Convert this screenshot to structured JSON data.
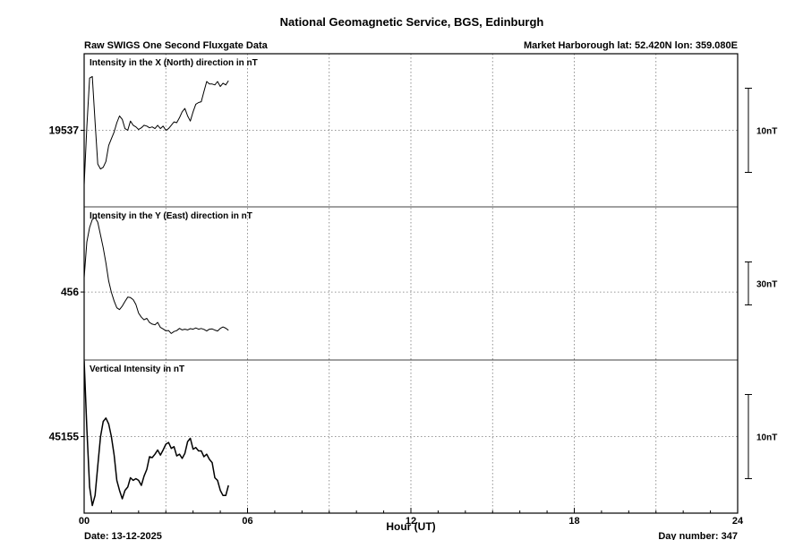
{
  "header": {
    "title": "National Geomagnetic Service, BGS, Edinburgh",
    "subtitle_left": "Raw SWIGS One Second Fluxgate Data",
    "subtitle_right": "Market Harborough  lat: 52.420N lon: 359.080E"
  },
  "footer": {
    "date": "Date: 13-12-2025",
    "day_number": "Day number:  347"
  },
  "chart_data": {
    "type": "line",
    "xlabel": "Hour (UT)",
    "xlim": [
      0,
      24
    ],
    "x_ticks": [
      {
        "value": 0,
        "label": "00"
      },
      {
        "value": 6,
        "label": "06"
      },
      {
        "value": 12,
        "label": "12"
      },
      {
        "value": 18,
        "label": "18"
      },
      {
        "value": 24,
        "label": "24"
      }
    ],
    "grid": true,
    "panels": [
      {
        "name": "Intensity in the X (North) direction in nT",
        "ylabel": "19537",
        "reference_value": 19537,
        "scale_label": "10nT",
        "scale_nT": 10,
        "ylim": [
          19527.9,
          19546.1
        ],
        "x": [
          0,
          0.1,
          0.2,
          0.3,
          0.4,
          0.5,
          0.6,
          0.7,
          0.8,
          0.9,
          1.0,
          1.1,
          1.2,
          1.3,
          1.4,
          1.5,
          1.6,
          1.7,
          1.8,
          1.9,
          2.0,
          2.1,
          2.2,
          2.3,
          2.4,
          2.5,
          2.6,
          2.7,
          2.8,
          2.9,
          3.0,
          3.1,
          3.2,
          3.3,
          3.4,
          3.5,
          3.6,
          3.7,
          3.8,
          3.9,
          4.0,
          4.1,
          4.2,
          4.3,
          4.4,
          4.5,
          4.6,
          4.7,
          4.8,
          4.9,
          5.0,
          5.1,
          5.2,
          5.3
        ],
        "values": [
          19530.5,
          19537.4,
          19543.2,
          19543.4,
          19538.0,
          19533.0,
          19532.4,
          19532.6,
          19533.3,
          19535.2,
          19536.0,
          19536.8,
          19537.9,
          19538.7,
          19538.3,
          19537.2,
          19537.0,
          19538.1,
          19537.6,
          19537.4,
          19537.1,
          19537.3,
          19537.6,
          19537.5,
          19537.3,
          19537.4,
          19537.2,
          19537.6,
          19537.2,
          19537.5,
          19537.0,
          19537.2,
          19537.6,
          19538.0,
          19537.9,
          19538.5,
          19539.2,
          19539.6,
          19538.7,
          19538.1,
          19539.2,
          19540.1,
          19540.3,
          19540.4,
          19541.6,
          19542.8,
          19542.5,
          19542.5,
          19542.4,
          19542.8,
          19542.2,
          19542.6,
          19542.4,
          19542.9
        ]
      },
      {
        "name": "Intensity in the Y (East) direction in nT",
        "ylabel": "456",
        "reference_value": 456,
        "scale_label": "30nT",
        "scale_nT": 30,
        "ylim": [
          408.5,
          515.5
        ],
        "x": [
          0,
          0.1,
          0.2,
          0.3,
          0.4,
          0.5,
          0.6,
          0.7,
          0.8,
          0.9,
          1.0,
          1.1,
          1.2,
          1.3,
          1.4,
          1.5,
          1.6,
          1.7,
          1.8,
          1.9,
          2.0,
          2.1,
          2.2,
          2.3,
          2.4,
          2.5,
          2.6,
          2.7,
          2.8,
          2.9,
          3.0,
          3.1,
          3.2,
          3.3,
          3.4,
          3.5,
          3.6,
          3.7,
          3.8,
          3.9,
          4.0,
          4.1,
          4.2,
          4.3,
          4.4,
          4.5,
          4.6,
          4.7,
          4.8,
          4.9,
          5.0,
          5.1,
          5.2,
          5.3
        ],
        "values": [
          466.0,
          491.0,
          501.1,
          506.7,
          508.0,
          504.8,
          495.8,
          486.9,
          476.3,
          463.7,
          455.8,
          449.7,
          445.0,
          443.7,
          446.2,
          449.4,
          452.4,
          452.1,
          450.7,
          447.3,
          441.3,
          438.4,
          436.6,
          437.6,
          434.7,
          433.6,
          433.1,
          434.8,
          431.3,
          430.2,
          428.9,
          429.1,
          427.0,
          428.4,
          429.0,
          430.6,
          429.5,
          430.0,
          429.5,
          430.4,
          430.0,
          430.9,
          430.0,
          430.5,
          429.9,
          428.8,
          430.0,
          430.2,
          429.4,
          428.8,
          430.6,
          431.6,
          430.7,
          429.3
        ]
      },
      {
        "name": "Vertical Intensity in nT",
        "ylabel": "45155",
        "reference_value": 45155,
        "scale_label": "10nT",
        "scale_nT": 10,
        "ylim": [
          45145.9,
          45164.1
        ],
        "x": [
          0,
          0.1,
          0.2,
          0.3,
          0.4,
          0.5,
          0.6,
          0.7,
          0.8,
          0.9,
          1.0,
          1.1,
          1.2,
          1.3,
          1.4,
          1.5,
          1.6,
          1.7,
          1.8,
          1.9,
          2.0,
          2.1,
          2.2,
          2.3,
          2.4,
          2.5,
          2.6,
          2.7,
          2.8,
          2.9,
          3.0,
          3.1,
          3.2,
          3.3,
          3.4,
          3.5,
          3.6,
          3.7,
          3.8,
          3.9,
          4.0,
          4.1,
          4.2,
          4.3,
          4.4,
          4.5,
          4.6,
          4.7,
          4.8,
          4.9,
          5.0,
          5.1,
          5.2,
          5.3
        ],
        "values": [
          45164.0,
          45156.0,
          45149.0,
          45146.8,
          45148.0,
          45151.5,
          45155.0,
          45156.8,
          45157.2,
          45156.5,
          45155.0,
          45152.8,
          45149.8,
          45148.6,
          45147.6,
          45148.6,
          45149.0,
          45150.1,
          45149.8,
          45150.0,
          45149.8,
          45149.2,
          45150.3,
          45151.1,
          45152.6,
          45152.5,
          45152.9,
          45153.4,
          45152.8,
          45153.4,
          45154.1,
          45154.3,
          45153.6,
          45153.8,
          45152.7,
          45152.9,
          45152.4,
          45153.0,
          45154.4,
          45154.8,
          45153.5,
          45153.7,
          45153.3,
          45153.3,
          45152.6,
          45152.9,
          45152.3,
          45151.9,
          45150.1,
          45149.8,
          45148.6,
          45148.0,
          45148.0,
          45149.2
        ]
      }
    ]
  }
}
